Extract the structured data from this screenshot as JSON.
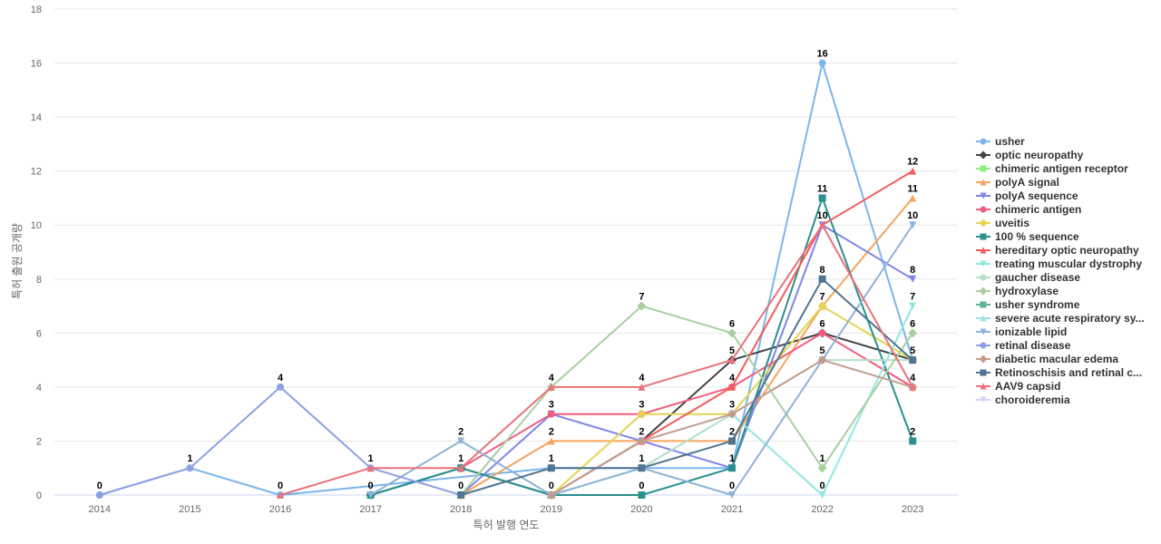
{
  "chart_data": {
    "type": "line",
    "xlabel": "특허 발행 연도",
    "ylabel": "특허 출원 공개량",
    "ylim": [
      0,
      18
    ],
    "yticks": [
      0,
      2,
      4,
      6,
      8,
      10,
      12,
      14,
      16,
      18
    ],
    "categories": [
      "2014",
      "2015",
      "2016",
      "2017",
      "2018",
      "2019",
      "2020",
      "2021",
      "2022",
      "2023"
    ],
    "grid": true,
    "legend_position": "right",
    "series": [
      {
        "name": "usher",
        "color": "#7cb5ec",
        "marker": "circle",
        "values": [
          0,
          1,
          0,
          null,
          null,
          1,
          null,
          1,
          16,
          5
        ]
      },
      {
        "name": "optic neuropathy",
        "color": "#434348",
        "marker": "diamond",
        "values": [
          null,
          null,
          null,
          0,
          1,
          0,
          2,
          5,
          6,
          5
        ]
      },
      {
        "name": "chimeric antigen receptor",
        "color": "#90ed7d",
        "marker": "square",
        "values": [
          null,
          null,
          null,
          null,
          null,
          null,
          null,
          null,
          null,
          null
        ]
      },
      {
        "name": "polyA signal",
        "color": "#f7a35c",
        "marker": "triangle",
        "values": [
          null,
          null,
          null,
          null,
          0,
          2,
          2,
          2,
          7,
          11
        ]
      },
      {
        "name": "polyA sequence",
        "color": "#8085e9",
        "marker": "triangle-down",
        "values": [
          null,
          null,
          null,
          null,
          0,
          3,
          2,
          1,
          10,
          8
        ]
      },
      {
        "name": "chimeric antigen",
        "color": "#f15c80",
        "marker": "circle",
        "values": [
          null,
          null,
          null,
          null,
          1,
          3,
          3,
          4,
          6,
          4
        ]
      },
      {
        "name": "uveitis",
        "color": "#e4d354",
        "marker": "diamond",
        "values": [
          null,
          null,
          null,
          null,
          null,
          0,
          3,
          3,
          7,
          5
        ]
      },
      {
        "name": "100 % sequence",
        "color": "#2b908f",
        "marker": "square",
        "values": [
          null,
          null,
          null,
          0,
          1,
          0,
          0,
          1,
          11,
          2
        ]
      },
      {
        "name": "hereditary optic neuropathy",
        "color": "#f45b5b",
        "marker": "triangle",
        "values": [
          null,
          null,
          null,
          null,
          null,
          0,
          2,
          4,
          10,
          12
        ]
      },
      {
        "name": "treating muscular dystrophy",
        "color": "#91e8e1",
        "marker": "triangle-down",
        "values": [
          null,
          null,
          null,
          null,
          null,
          0,
          1,
          3,
          0,
          7
        ]
      },
      {
        "name": "gaucher disease",
        "color": "#b5e0c9",
        "marker": "circle",
        "values": [
          null,
          null,
          null,
          null,
          null,
          0,
          1,
          3,
          5,
          5
        ]
      },
      {
        "name": "hydroxylase",
        "color": "#a9cfa0",
        "marker": "diamond",
        "values": [
          null,
          null,
          null,
          null,
          0,
          4,
          7,
          6,
          1,
          6
        ]
      },
      {
        "name": "usher syndrome",
        "color": "#5fb39a",
        "marker": "square",
        "values": [
          null,
          null,
          null,
          null,
          null,
          null,
          null,
          null,
          null,
          null
        ]
      },
      {
        "name": "severe acute respiratory sy...",
        "color": "#a3dcea",
        "marker": "triangle",
        "values": [
          null,
          null,
          null,
          null,
          null,
          null,
          null,
          null,
          null,
          null
        ]
      },
      {
        "name": "ionizable lipid",
        "color": "#8db3d9",
        "marker": "triangle-down",
        "values": [
          null,
          null,
          null,
          0,
          2,
          0,
          1,
          0,
          5,
          10
        ]
      },
      {
        "name": "retinal disease",
        "color": "#8f9fe3",
        "marker": "circle",
        "values": [
          0,
          1,
          4,
          1,
          0,
          null,
          null,
          null,
          null,
          null
        ]
      },
      {
        "name": "diabetic macular edema",
        "color": "#c29d8f",
        "marker": "diamond",
        "values": [
          null,
          null,
          null,
          null,
          null,
          0,
          2,
          3,
          5,
          4
        ]
      },
      {
        "name": "Retinoschisis and retinal c...",
        "color": "#4f7590",
        "marker": "square",
        "values": [
          null,
          null,
          null,
          null,
          0,
          1,
          1,
          2,
          8,
          5
        ]
      },
      {
        "name": "AAV9 capsid",
        "color": "#e8737b",
        "marker": "triangle",
        "values": [
          null,
          null,
          0,
          1,
          1,
          4,
          4,
          5,
          10,
          4
        ]
      },
      {
        "name": "choroideremia",
        "color": "#dcd0f0",
        "marker": "triangle-down",
        "values": [
          null,
          null,
          null,
          null,
          null,
          null,
          null,
          null,
          null,
          null
        ]
      }
    ]
  }
}
